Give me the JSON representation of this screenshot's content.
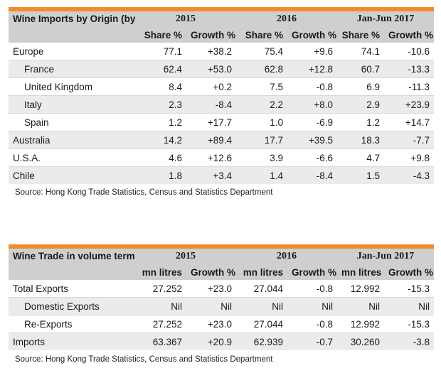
{
  "table1": {
    "title": "Wine Imports by Origin (by value)",
    "periods": [
      "2015",
      "2016",
      "Jan-Jun 2017"
    ],
    "col_share": "Share %",
    "col_growth": "Growth %",
    "rows": [
      {
        "label": "Europe",
        "indent": false,
        "v": [
          "77.1",
          "+38.2",
          "75.4",
          "+9.6",
          "74.1",
          "-10.6"
        ]
      },
      {
        "label": "France",
        "indent": true,
        "v": [
          "62.4",
          "+53.0",
          "62.8",
          "+12.8",
          "60.7",
          "-13.3"
        ]
      },
      {
        "label": "United Kingdom",
        "indent": true,
        "v": [
          "8.4",
          "+0.2",
          "7.5",
          "-0.8",
          "6.9",
          "-11.3"
        ]
      },
      {
        "label": "Italy",
        "indent": true,
        "v": [
          "2.3",
          "-8.4",
          "2.2",
          "+8.0",
          "2.9",
          "+23.9"
        ]
      },
      {
        "label": "Spain",
        "indent": true,
        "v": [
          "1.2",
          "+17.7",
          "1.0",
          "-6.9",
          "1.2",
          "+14.7"
        ]
      },
      {
        "label": "Australia",
        "indent": false,
        "v": [
          "14.2",
          "+89.4",
          "17.7",
          "+39.5",
          "18.3",
          "-7.7"
        ]
      },
      {
        "label": "U.S.A.",
        "indent": false,
        "v": [
          "4.6",
          "+12.6",
          "3.9",
          "-6.6",
          "4.7",
          "+9.8"
        ]
      },
      {
        "label": "Chile",
        "indent": false,
        "v": [
          "1.8",
          "+3.4",
          "1.4",
          "-8.4",
          "1.5",
          "-4.3"
        ]
      }
    ],
    "source": "Source: Hong Kong Trade Statistics, Census and Statistics Department"
  },
  "table2": {
    "title": "Wine Trade in volume terms",
    "periods": [
      "2015",
      "2016",
      "Jan-Jun 2017"
    ],
    "col_volume": "mn litres",
    "col_growth": "Growth %",
    "rows": [
      {
        "label": "Total Exports",
        "indent": false,
        "v": [
          "27.252",
          "+23.0",
          "27.044",
          "-0.8",
          "12.992",
          "-15.3"
        ]
      },
      {
        "label": "Domestic Exports",
        "indent": true,
        "v": [
          "Nil",
          "Nil",
          "Nil",
          "Nil",
          "Nil",
          "Nil"
        ]
      },
      {
        "label": "Re-Exports",
        "indent": true,
        "v": [
          "27.252",
          "+23.0",
          "27.044",
          "-0.8",
          "12.992",
          "-15.3"
        ]
      },
      {
        "label": "Imports",
        "indent": false,
        "v": [
          "63.367",
          "+20.9",
          "62.939",
          "-0.7",
          "30.260",
          "-3.8"
        ]
      }
    ],
    "source": "Source: Hong Kong Trade Statistics, Census and Statistics Department"
  },
  "colors": {
    "accent": "#f28c28",
    "header_bg": "#cfcfcf",
    "alt_row_bg": "#ebebeb"
  }
}
